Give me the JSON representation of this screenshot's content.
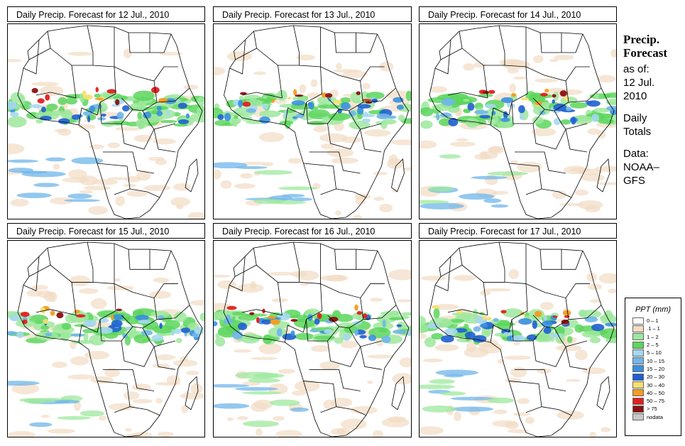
{
  "panels": [
    {
      "title": "Daily Precip. Forecast for  12 Jul., 2010",
      "seed": 1
    },
    {
      "title": "Daily Precip. Forecast for  13 Jul., 2010",
      "seed": 2
    },
    {
      "title": "Daily Precip. Forecast for  14 Jul., 2010",
      "seed": 3
    },
    {
      "title": "Daily Precip. Forecast for  15 Jul., 2010",
      "seed": 4
    },
    {
      "title": "Daily Precip. Forecast for  16 Jul., 2010",
      "seed": 5
    },
    {
      "title": "Daily Precip. Forecast for  17 Jul., 2010",
      "seed": 6
    }
  ],
  "side": {
    "heading1": "Precip.",
    "heading2": "Forecast",
    "asof": "as of:",
    "date1": "12 Jul.",
    "date2": "2010",
    "totals1": "Daily",
    "totals2": "Totals",
    "data1": "Data:",
    "data2": "NOAA–",
    "data3": "GFS"
  },
  "legend": {
    "title": "PPT (mm)",
    "items": [
      {
        "label": "0 – 1",
        "color": "#ffffff"
      },
      {
        "label": ".1 – 1",
        "color": "#f2dcc3"
      },
      {
        "label": "1 – 2",
        "color": "#9ee89e"
      },
      {
        "label": "2 – 5",
        "color": "#5cd65c"
      },
      {
        "label": "5 – 10",
        "color": "#a6d8f0"
      },
      {
        "label": "10 – 15",
        "color": "#6fb6ea"
      },
      {
        "label": "15 – 20",
        "color": "#3a8fe0"
      },
      {
        "label": "20 – 30",
        "color": "#1f5fd0"
      },
      {
        "label": "30 – 40",
        "color": "#f5e070"
      },
      {
        "label": "40 – 50",
        "color": "#f59b20"
      },
      {
        "label": "50 – 75",
        "color": "#e02020"
      },
      {
        "label": "> 75",
        "color": "#8b1010"
      },
      {
        "label": "nodata",
        "color": "#c8c8c8"
      }
    ]
  }
}
